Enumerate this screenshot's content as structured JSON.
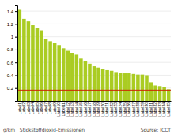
{
  "chart_data": {
    "type": "bar",
    "title": "g/km   Stickstoffdioxid-Emissionen",
    "annotations": [
      "Source: ICCT"
    ],
    "categories": [
      "Label1",
      "Label2",
      "Label3",
      "Label4",
      "Label5",
      "Label6",
      "Label7",
      "Label8",
      "Label9",
      "Label10",
      "Label11",
      "Label12",
      "Label13",
      "Label14",
      "Label15",
      "Label16",
      "Label17",
      "Label18",
      "Label19",
      "Label20",
      "Label21",
      "Label22",
      "Label23",
      "Label24",
      "Label25",
      "Label26",
      "Label27",
      "Label28",
      "Label29",
      "Label30",
      "Label31",
      "Label32",
      "Label33",
      "Label34",
      "Label35"
    ],
    "values": [
      1.42,
      1.28,
      1.24,
      1.18,
      1.14,
      1.1,
      0.97,
      0.93,
      0.9,
      0.87,
      0.82,
      0.78,
      0.75,
      0.72,
      0.66,
      0.62,
      0.58,
      0.54,
      0.52,
      0.5,
      0.48,
      0.47,
      0.45,
      0.44,
      0.43,
      0.43,
      0.42,
      0.41,
      0.41,
      0.4,
      0.29,
      0.24,
      0.23,
      0.22,
      0.18
    ],
    "color": "#aacc22",
    "reference_line": {
      "value": 0.168,
      "color": "#cc2200"
    },
    "ylim": [
      0,
      1.5
    ],
    "yticks": [
      0.2,
      0.4,
      0.6,
      0.8,
      1.0,
      1.2,
      1.4
    ],
    "grid": true
  }
}
